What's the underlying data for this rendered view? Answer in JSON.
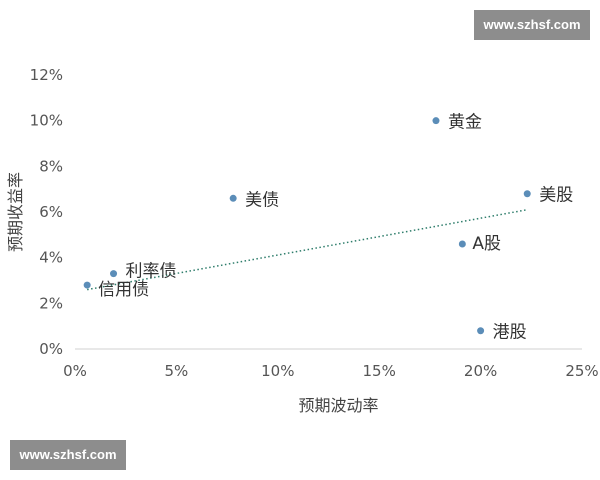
{
  "watermark": {
    "top_text": "www.szhsf.com",
    "bottom_text": "www.szhsf.com"
  },
  "chart_data": {
    "type": "scatter",
    "xlabel": "预期波动率",
    "ylabel": "预期收益率",
    "xlim": [
      0,
      0.25
    ],
    "ylim": [
      0,
      0.12
    ],
    "x_ticks": [
      "0%",
      "5%",
      "10%",
      "15%",
      "20%",
      "25%"
    ],
    "y_ticks": [
      "0%",
      "2%",
      "4%",
      "6%",
      "8%",
      "10%",
      "12%"
    ],
    "grid": false,
    "point_color": "#5b8db8",
    "trend_color": "#2e7d6b",
    "points": [
      {
        "label": "黄金",
        "x": 0.178,
        "y": 0.1
      },
      {
        "label": "美股",
        "x": 0.223,
        "y": 0.068
      },
      {
        "label": "美债",
        "x": 0.078,
        "y": 0.066
      },
      {
        "label": "A股",
        "x": 0.191,
        "y": 0.046
      },
      {
        "label": "利率债",
        "x": 0.019,
        "y": 0.033
      },
      {
        "label": "信用债",
        "x": 0.006,
        "y": 0.028
      },
      {
        "label": "港股",
        "x": 0.2,
        "y": 0.008
      }
    ],
    "trendline": {
      "type": "linear",
      "from": {
        "x": 0.006,
        "y": 0.026
      },
      "to": {
        "x": 0.223,
        "y": 0.061
      }
    }
  }
}
